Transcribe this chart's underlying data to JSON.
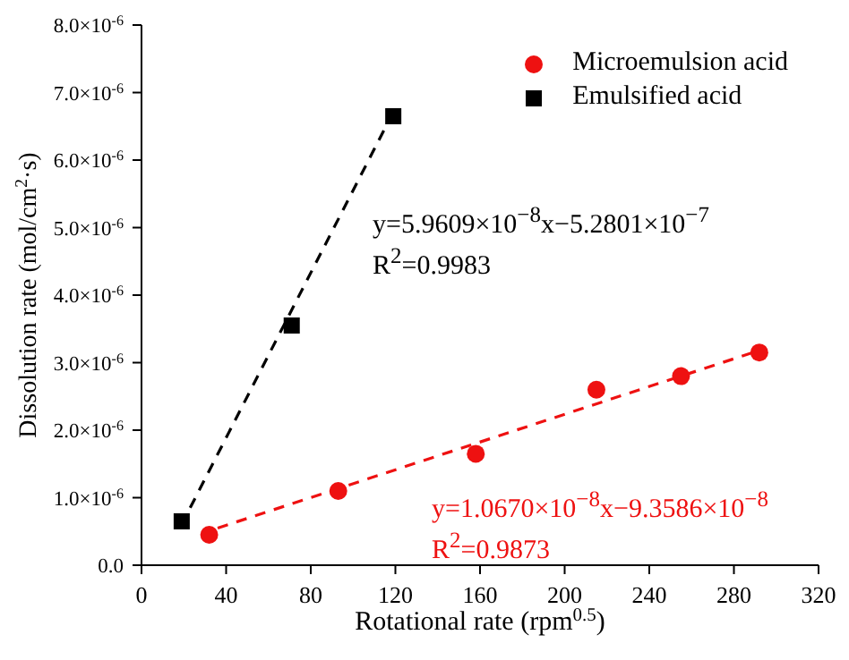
{
  "chart_data": {
    "type": "scatter",
    "xlabel": "Rotational rate (rpm$^{0.5}$)",
    "ylabel": "Dissolution rate (mol/cm$^{2}$·s)",
    "xlim": [
      0,
      320
    ],
    "xticks": [
      0,
      40,
      80,
      120,
      160,
      200,
      240,
      280,
      320
    ],
    "ylim": [
      0,
      8e-06
    ],
    "yticks": [
      {
        "value": 0,
        "label": "0.0"
      },
      {
        "value": 1e-06,
        "label": "1.0×10$^{-6}$"
      },
      {
        "value": 2e-06,
        "label": "2.0×10$^{-6}$"
      },
      {
        "value": 3e-06,
        "label": "3.0×10$^{-6}$"
      },
      {
        "value": 4e-06,
        "label": "4.0×10$^{-6}$"
      },
      {
        "value": 5e-06,
        "label": "5.0×10$^{-6}$"
      },
      {
        "value": 6e-06,
        "label": "6.0×10$^{-6}$"
      },
      {
        "value": 7e-06,
        "label": "7.0×10$^{-6}$"
      },
      {
        "value": 8e-06,
        "label": "8.0×10$^{-6}$"
      }
    ],
    "grid": false,
    "legend": "top right",
    "series": [
      {
        "name": "Microemulsion acid",
        "type": "scatter",
        "marker": "circle",
        "color": "#ee1111",
        "x": [
          32,
          93,
          158,
          215,
          255,
          292
        ],
        "values": [
          4.5e-07,
          1.1e-06,
          1.65e-06,
          2.6e-06,
          2.8e-06,
          3.15e-06
        ]
      },
      {
        "name": "Emulsified acid",
        "type": "scatter",
        "marker": "square",
        "color": "#000000",
        "x": [
          19,
          71,
          119
        ],
        "values": [
          6.5e-07,
          3.55e-06,
          6.65e-06
        ]
      },
      {
        "type": "line",
        "line_style": "dashed",
        "marker": "none",
        "color": "#ee1111",
        "x": [
          36,
          289
        ],
        "values": [
          5.5e-07,
          3.15e-06
        ]
      },
      {
        "type": "line",
        "line_style": "dashed",
        "marker": "none",
        "color": "#000000",
        "x": [
          23,
          118
        ],
        "values": [
          8.5e-07,
          6.65e-06
        ]
      }
    ],
    "annotations": [
      "y=5.9609×10$^{−8}$x−5.2801×10$^{−7}$",
      "R$^{2}$=0.9983",
      "y=1.0670×10$^{−8}$x−9.3586×10$^{−8}$",
      "R$^{2}$=0.9873"
    ]
  }
}
